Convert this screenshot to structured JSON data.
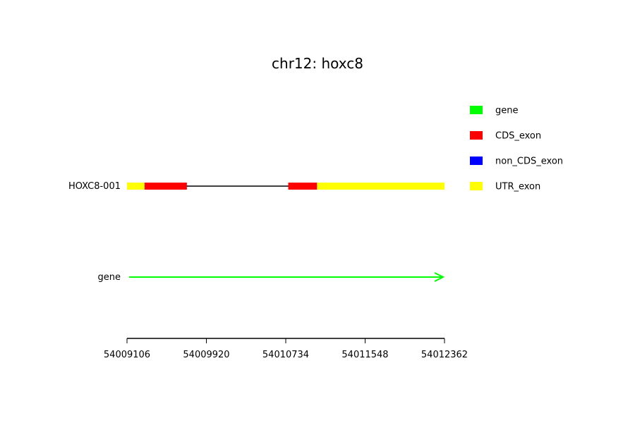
{
  "title": "chr12: hoxc8",
  "transcript": {
    "label": "HOXC8-001",
    "start": 54009106,
    "end": 54012362,
    "blocks": [
      {
        "type": "UTR_exon",
        "start": 54009106,
        "end": 54009286
      },
      {
        "type": "CDS_exon",
        "start": 54009286,
        "end": 54009720
      },
      {
        "type": "CDS_exon",
        "start": 54010760,
        "end": 54011055
      },
      {
        "type": "UTR_exon",
        "start": 54011055,
        "end": 54012362
      }
    ]
  },
  "gene": {
    "label": "gene",
    "start": 54009106,
    "end": 54012362,
    "strand": "+"
  },
  "axis": {
    "min": 54009106,
    "max": 54012362,
    "ticks": [
      "54009106",
      "54009920",
      "54010734",
      "54011548",
      "54012362"
    ]
  },
  "legend": [
    {
      "label": "gene",
      "color": "#00ff00"
    },
    {
      "label": "CDS_exon",
      "color": "#ff0000"
    },
    {
      "label": "non_CDS_exon",
      "color": "#0000ff"
    },
    {
      "label": "UTR_exon",
      "color": "#ffff00"
    }
  ],
  "colors": {
    "gene": "#00ff00",
    "CDS_exon": "#ff0000",
    "non_CDS_exon": "#0000ff",
    "UTR_exon": "#ffff00",
    "intron": "#000000"
  }
}
